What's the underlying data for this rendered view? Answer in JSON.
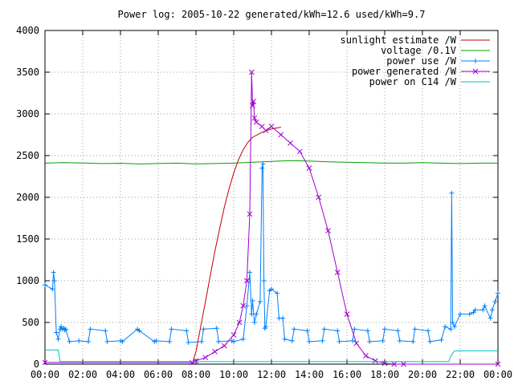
{
  "chart_data": {
    "type": "line",
    "title": "Power log: 2005-10-22 generated/kWh=12.6 used/kWh=9.7",
    "xlabel": "",
    "ylabel": "",
    "xlim": [
      0,
      24
    ],
    "ylim": [
      0,
      4000
    ],
    "x_ticks": [
      0,
      2,
      4,
      6,
      8,
      10,
      12,
      14,
      16,
      18,
      20,
      22,
      24
    ],
    "x_tick_labels": [
      "00:00",
      "02:00",
      "04:00",
      "06:00",
      "08:00",
      "10:00",
      "12:00",
      "14:00",
      "16:00",
      "18:00",
      "20:00",
      "22:00",
      "00:00"
    ],
    "y_ticks": [
      0,
      500,
      1000,
      1500,
      2000,
      2500,
      3000,
      3500,
      4000
    ],
    "y_tick_labels": [
      "0",
      "500",
      "1000",
      "1500",
      "2000",
      "2500",
      "3000",
      "3500",
      "4000"
    ],
    "grid": true,
    "legend_position": "top-right",
    "series": [
      {
        "name": "sunlight estimate /W",
        "color": "#c00000",
        "marker": "none",
        "x": [
          7.8,
          8.0,
          8.25,
          8.5,
          8.75,
          9.0,
          9.25,
          9.5,
          9.75,
          10.0,
          10.25,
          10.5,
          10.75,
          11.0,
          11.5,
          12.0,
          12.5
        ],
        "y": [
          0,
          150,
          450,
          750,
          1050,
          1350,
          1620,
          1880,
          2100,
          2290,
          2450,
          2570,
          2660,
          2720,
          2780,
          2820,
          2840
        ]
      },
      {
        "name": "voltage /0.1V",
        "color": "#00a000",
        "marker": "none",
        "x": [
          0,
          1,
          2,
          3,
          4,
          5,
          6,
          7,
          8,
          9,
          10,
          11,
          12,
          13,
          14,
          15,
          16,
          17,
          18,
          19,
          20,
          21,
          22,
          23,
          24
        ],
        "y": [
          2410,
          2415,
          2412,
          2405,
          2408,
          2400,
          2405,
          2410,
          2400,
          2405,
          2410,
          2420,
          2430,
          2440,
          2435,
          2425,
          2420,
          2415,
          2410,
          2410,
          2415,
          2410,
          2405,
          2410,
          2410
        ]
      },
      {
        "name": "power use /W",
        "color": "#0080ff",
        "marker": "plus",
        "x": [
          0,
          0.4,
          0.45,
          0.5,
          0.6,
          0.7,
          0.8,
          0.85,
          0.9,
          1.0,
          1.05,
          1.1,
          1.3,
          1.8,
          2.3,
          2.4,
          3.2,
          3.3,
          4.0,
          4.1,
          4.9,
          5.0,
          5.8,
          5.9,
          6.6,
          6.7,
          7.5,
          7.6,
          8.3,
          8.4,
          9.1,
          9.2,
          9.9,
          10.0,
          10.5,
          10.7,
          10.85,
          10.95,
          11.0,
          11.1,
          11.2,
          11.4,
          11.5,
          11.55,
          11.6,
          11.65,
          11.7,
          11.9,
          12.0,
          12.3,
          12.4,
          12.6,
          12.7,
          13.1,
          13.2,
          13.9,
          14.0,
          14.7,
          14.8,
          15.5,
          15.6,
          16.3,
          16.4,
          17.1,
          17.2,
          17.9,
          18.0,
          18.7,
          18.8,
          19.5,
          19.6,
          20.3,
          20.4,
          21.0,
          21.2,
          21.5,
          21.55,
          21.6,
          21.7,
          22.0,
          22.5,
          22.7,
          22.8,
          23.2,
          23.3,
          23.6,
          23.7,
          23.85,
          24
        ],
        "y": [
          950,
          900,
          1100,
          1000,
          380,
          300,
          420,
          450,
          420,
          430,
          410,
          420,
          270,
          280,
          270,
          420,
          400,
          270,
          280,
          270,
          420,
          400,
          270,
          280,
          270,
          420,
          400,
          260,
          270,
          420,
          430,
          270,
          280,
          270,
          300,
          700,
          1100,
          600,
          760,
          500,
          600,
          750,
          2350,
          2400,
          1000,
          430,
          450,
          880,
          900,
          850,
          550,
          550,
          300,
          280,
          420,
          400,
          270,
          280,
          420,
          400,
          270,
          280,
          420,
          400,
          270,
          280,
          420,
          400,
          280,
          270,
          420,
          400,
          270,
          290,
          450,
          420,
          2050,
          500,
          450,
          600,
          600,
          620,
          650,
          650,
          700,
          550,
          650,
          750,
          850
        ]
      },
      {
        "name": "power generated /W",
        "color": "#a000d0",
        "marker": "x",
        "x": [
          0,
          7.8,
          8.0,
          8.5,
          9.0,
          9.5,
          10.0,
          10.3,
          10.5,
          10.7,
          10.85,
          10.95,
          11.0,
          11.05,
          11.1,
          11.2,
          11.5,
          11.7,
          12.0,
          12.5,
          13.0,
          13.5,
          14.0,
          14.5,
          15.0,
          15.5,
          16.0,
          16.5,
          17.0,
          17.5,
          18.0,
          18.5,
          19.0,
          24
        ],
        "y": [
          20,
          20,
          40,
          80,
          150,
          220,
          350,
          500,
          700,
          1000,
          1800,
          3500,
          3100,
          3150,
          2950,
          2900,
          2850,
          2800,
          2850,
          2750,
          2650,
          2550,
          2350,
          2000,
          1600,
          1100,
          600,
          250,
          100,
          40,
          10,
          0,
          0,
          0
        ]
      },
      {
        "name": "power on C14 /W",
        "color": "#00c0c0",
        "marker": "none",
        "x": [
          0,
          0.5,
          0.7,
          0.8,
          21.4,
          21.5,
          21.7,
          22.0,
          24
        ],
        "y": [
          170,
          170,
          170,
          30,
          30,
          100,
          160,
          160,
          160
        ]
      }
    ]
  }
}
